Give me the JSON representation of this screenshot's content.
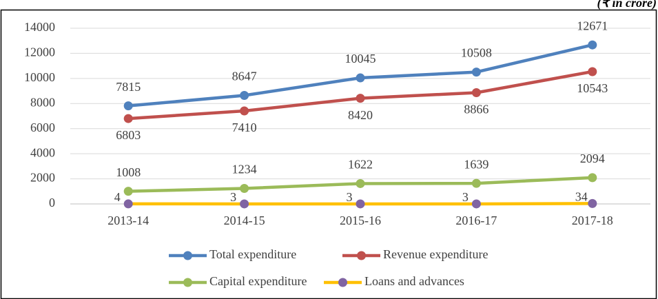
{
  "chart_data": {
    "type": "line",
    "subtitle": "(₹ in crore)",
    "categories": [
      "2013-14",
      "2014-15",
      "2015-16",
      "2016-17",
      "2017-18"
    ],
    "series": [
      {
        "name": "Total expenditure",
        "color": "#4f81bd",
        "marker_color": "#4f81bd",
        "label_position": "above",
        "values": [
          7815,
          8647,
          10045,
          10508,
          12671
        ]
      },
      {
        "name": "Revenue expenditure",
        "color": "#c0504d",
        "marker_color": "#c0504d",
        "label_position": "below",
        "values": [
          6803,
          7410,
          8420,
          8866,
          10543
        ]
      },
      {
        "name": "Capital expenditure",
        "color": "#9bbb59",
        "marker_color": "#9bbb59",
        "label_position": "above",
        "values": [
          1008,
          1234,
          1622,
          1639,
          2094
        ]
      },
      {
        "name": "Loans and advances",
        "color": "#ffc000",
        "marker_color": "#8064a2",
        "label_position": "left",
        "values": [
          4,
          3,
          3,
          3,
          34
        ]
      }
    ],
    "ylim": [
      0,
      14000
    ],
    "yticks": [
      0,
      2000,
      4000,
      6000,
      8000,
      10000,
      12000,
      14000
    ],
    "grid": true,
    "legend": "bottom"
  }
}
